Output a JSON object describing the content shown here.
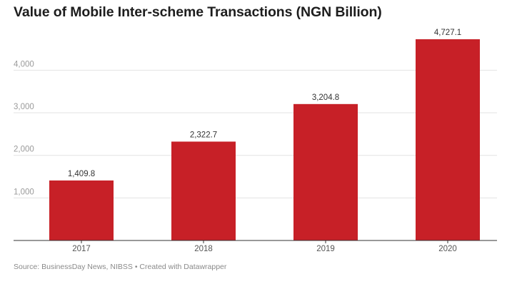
{
  "chart_data": {
    "type": "bar",
    "title": "Value of Mobile Inter-scheme Transactions (NGN Billion)",
    "categories": [
      "2017",
      "2018",
      "2019",
      "2020"
    ],
    "values": [
      1409.8,
      2322.7,
      3204.8,
      4727.1
    ],
    "value_labels": [
      "1,409.8",
      "2,322.7",
      "3,204.8",
      "4,727.1"
    ],
    "yticks": [
      1000,
      2000,
      3000,
      4000
    ],
    "ytick_labels": [
      "1,000",
      "2,000",
      "3,000",
      "4,000"
    ],
    "ylim": [
      0,
      4727.1
    ],
    "grid": true,
    "bar_color": "#c72027",
    "xlabel": "",
    "ylabel": ""
  },
  "footer": {
    "source": "Source: BusinessDay News, NIBSS • Created with Datawrapper"
  }
}
